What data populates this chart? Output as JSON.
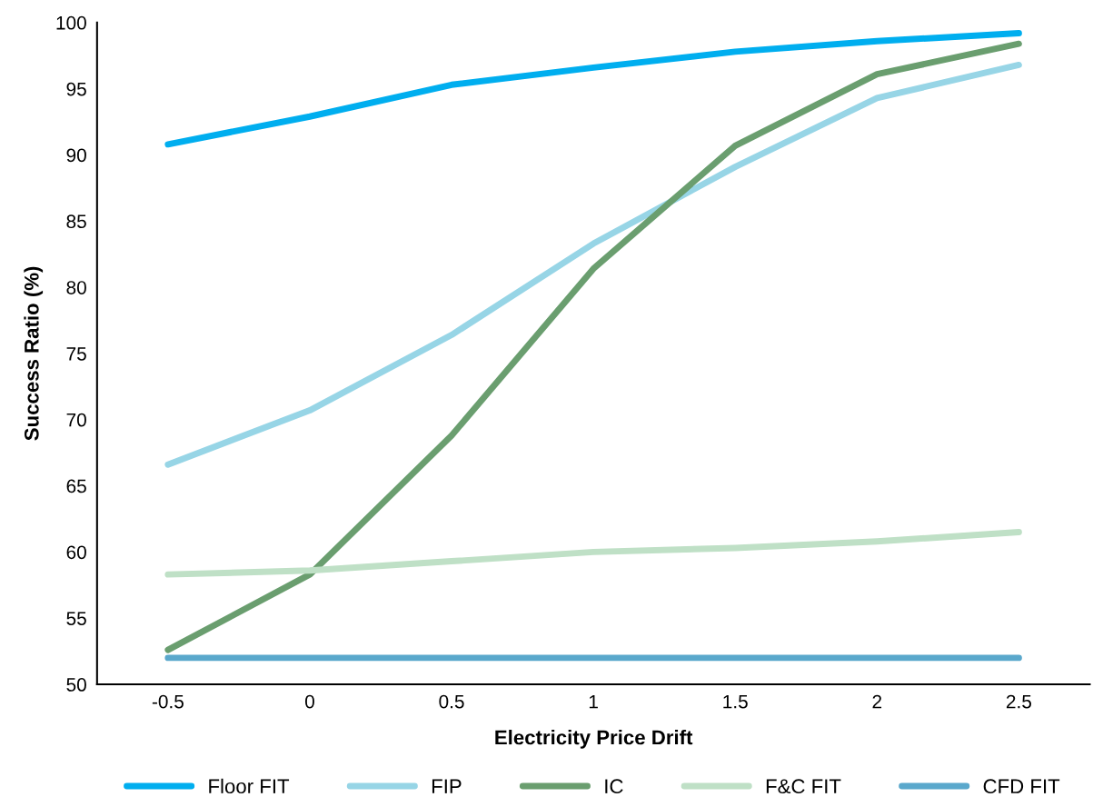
{
  "chart_data": {
    "type": "line",
    "xlabel": "Electricity Price Drift",
    "ylabel": "Success Ratio (%)",
    "categories": [
      "-0.5",
      "0",
      "0.5",
      "1",
      "1.5",
      "2",
      "2.5"
    ],
    "ylim": [
      50,
      100
    ],
    "yticks": [
      50,
      55,
      60,
      65,
      70,
      75,
      80,
      85,
      90,
      95,
      100
    ],
    "grid": false,
    "legend": "bottom",
    "marker": "none",
    "line_style": "solid",
    "series": [
      {
        "name": "Floor FIT",
        "color": "#00aeef",
        "values": [
          90.8,
          92.9,
          95.3,
          96.6,
          97.8,
          98.6,
          99.2
        ]
      },
      {
        "name": "FIP",
        "color": "#97d5e6",
        "values": [
          66.6,
          70.7,
          76.4,
          83.3,
          89.1,
          94.3,
          96.8
        ]
      },
      {
        "name": "IC",
        "color": "#6a9e6f",
        "values": [
          52.6,
          58.3,
          68.8,
          81.4,
          90.7,
          96.1,
          98.4
        ]
      },
      {
        "name": "F&C FIT",
        "color": "#bfe0c6",
        "values": [
          58.3,
          58.6,
          59.3,
          60.0,
          60.3,
          60.8,
          61.5
        ]
      },
      {
        "name": "CFD FIT",
        "color": "#5aa8cc",
        "values": [
          52,
          52,
          52,
          52,
          52,
          52,
          52
        ]
      }
    ]
  }
}
